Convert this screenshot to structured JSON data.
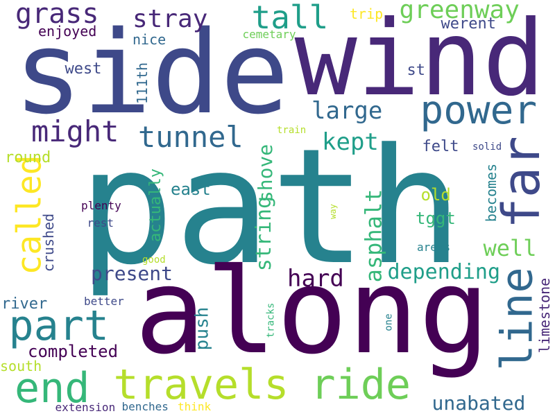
{
  "palette": {
    "dark_purple": "#440154",
    "indigo": "#482878",
    "slate_blue": "#3e4989",
    "blue": "#31688e",
    "teal_blue": "#26828e",
    "teal": "#1f9e89",
    "green": "#35b779",
    "light_green": "#6ece58",
    "lime": "#b5de2b",
    "yellow": "#fde725"
  },
  "words": [
    {
      "id": "path",
      "text": "path",
      "color": "#26828e"
    },
    {
      "id": "along",
      "text": "along",
      "color": "#440154"
    },
    {
      "id": "side",
      "text": "side",
      "color": "#3e4989"
    },
    {
      "id": "wind",
      "text": "wind",
      "color": "#482878"
    },
    {
      "id": "power",
      "text": "power",
      "color": "#31688e"
    },
    {
      "id": "far",
      "text": "far",
      "color": "#3e4989"
    },
    {
      "id": "line",
      "text": "line",
      "color": "#31688e"
    },
    {
      "id": "ride",
      "text": "ride",
      "color": "#6ece58"
    },
    {
      "id": "travels",
      "text": "travels",
      "color": "#b5de2b"
    },
    {
      "id": "end",
      "text": "end",
      "color": "#35b779"
    },
    {
      "id": "part",
      "text": "part",
      "color": "#26828e"
    },
    {
      "id": "called",
      "text": "called",
      "color": "#fde725"
    },
    {
      "id": "might",
      "text": "might",
      "color": "#482878"
    },
    {
      "id": "tunnel",
      "text": "tunnel",
      "color": "#31688e"
    },
    {
      "id": "tall",
      "text": "tall",
      "color": "#1f9e89"
    },
    {
      "id": "grass",
      "text": "grass",
      "color": "#482878"
    },
    {
      "id": "greenway",
      "text": "greenway",
      "color": "#6ece58"
    },
    {
      "id": "stray",
      "text": "stray",
      "color": "#482878"
    },
    {
      "id": "large",
      "text": "large",
      "color": "#31688e"
    },
    {
      "id": "kept",
      "text": "kept",
      "color": "#1f9e89"
    },
    {
      "id": "string",
      "text": "string",
      "color": "#35b779"
    },
    {
      "id": "shove",
      "text": "shove",
      "color": "#35b779"
    },
    {
      "id": "asphalt",
      "text": "asphalt",
      "color": "#35b779"
    },
    {
      "id": "hard",
      "text": "hard",
      "color": "#440154"
    },
    {
      "id": "well",
      "text": "well",
      "color": "#6ece58"
    },
    {
      "id": "depending",
      "text": "depending",
      "color": "#1f9e89"
    },
    {
      "id": "unabated",
      "text": "unabated",
      "color": "#31688e"
    },
    {
      "id": "present",
      "text": "present",
      "color": "#3e4989"
    },
    {
      "id": "completed",
      "text": "completed",
      "color": "#440154"
    },
    {
      "id": "push",
      "text": "push",
      "color": "#26828e"
    },
    {
      "id": "actually",
      "text": "actually",
      "color": "#35b779"
    },
    {
      "id": "east",
      "text": "east",
      "color": "#26828e"
    },
    {
      "id": "becomes",
      "text": "becomes",
      "color": "#26828e"
    },
    {
      "id": "limestone",
      "text": "limestone",
      "color": "#482878"
    },
    {
      "id": "old",
      "text": "old",
      "color": "#b5de2b"
    },
    {
      "id": "tggt",
      "text": "tggt",
      "color": "#35b779"
    },
    {
      "id": "felt",
      "text": "felt",
      "color": "#3e4989"
    },
    {
      "id": "werent",
      "text": "werent",
      "color": "#3e4989"
    },
    {
      "id": "trip",
      "text": "trip",
      "color": "#fde725"
    },
    {
      "id": "cemetary",
      "text": "cemetary",
      "color": "#6ece58"
    },
    {
      "id": "enjoyed",
      "text": "enjoyed",
      "color": "#440154"
    },
    {
      "id": "nice",
      "text": "nice",
      "color": "#31688e"
    },
    {
      "id": "west",
      "text": "west",
      "color": "#3e4989"
    },
    {
      "id": "111th",
      "text": "111th",
      "color": "#31688e"
    },
    {
      "id": "st",
      "text": "st",
      "color": "#3e4989"
    },
    {
      "id": "round",
      "text": "round",
      "color": "#b5de2b"
    },
    {
      "id": "crushed",
      "text": "crushed",
      "color": "#3e4989"
    },
    {
      "id": "river",
      "text": "river",
      "color": "#31688e"
    },
    {
      "id": "south",
      "text": "south",
      "color": "#b5de2b"
    },
    {
      "id": "extension",
      "text": "extension",
      "color": "#482878"
    },
    {
      "id": "benches",
      "text": "benches",
      "color": "#31688e"
    },
    {
      "id": "think",
      "text": "think",
      "color": "#fde725"
    },
    {
      "id": "plenty",
      "text": "plenty",
      "color": "#440154"
    },
    {
      "id": "rest",
      "text": "rest",
      "color": "#3e4989"
    },
    {
      "id": "good",
      "text": "good",
      "color": "#b5de2b"
    },
    {
      "id": "better",
      "text": "better",
      "color": "#3e4989"
    },
    {
      "id": "tracks",
      "text": "tracks",
      "color": "#35b779"
    },
    {
      "id": "one",
      "text": "one",
      "color": "#26828e"
    },
    {
      "id": "way",
      "text": "way",
      "color": "#b5de2b"
    },
    {
      "id": "areas",
      "text": "areas",
      "color": "#26828e"
    },
    {
      "id": "train",
      "text": "train",
      "color": "#b5de2b"
    },
    {
      "id": "solid",
      "text": "solid",
      "color": "#3e4989"
    }
  ]
}
